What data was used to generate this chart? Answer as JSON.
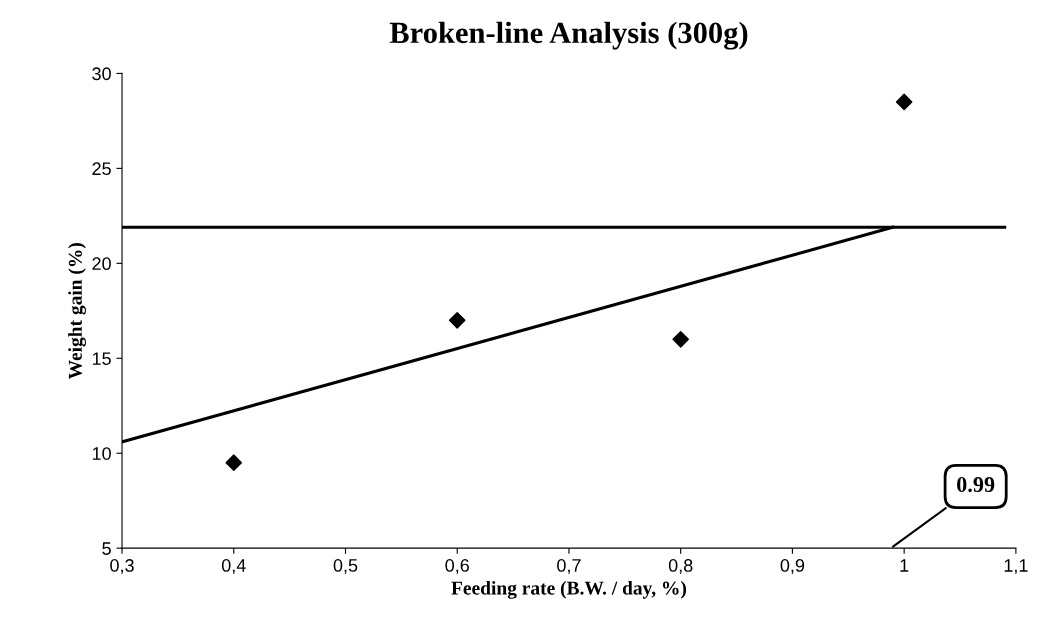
{
  "chart_data": {
    "type": "scatter",
    "title": "Broken-line Analysis (300g)",
    "xlabel": "Feeding rate (B.W. / day, %)",
    "ylabel": "Weight gain (%)",
    "x": [
      0.4,
      0.6,
      0.8,
      1.0
    ],
    "series": [
      {
        "color": "#000000",
        "marker": "diamond",
        "values": [
          9.5,
          17.0,
          16.0,
          28.5
        ]
      },
      {
        "type": "line",
        "color": "#000000",
        "marker": "none",
        "line_style": "solid",
        "x": [
          0.3,
          0.99
        ],
        "values": [
          10.6,
          21.9
        ]
      },
      {
        "type": "line",
        "color": "#000000",
        "marker": "none",
        "line_style": "solid",
        "x": [
          0.3,
          1.09
        ],
        "values": [
          21.9,
          21.9
        ]
      }
    ],
    "annotations": [
      "0.99"
    ],
    "xlim": [
      0.3,
      1.1
    ],
    "ylim": [
      5,
      30
    ],
    "xticks": [
      {
        "value": 0.3,
        "label": "0,3"
      },
      {
        "value": 0.4,
        "label": "0,4"
      },
      {
        "value": 0.5,
        "label": "0,5"
      },
      {
        "value": 0.6,
        "label": "0,6"
      },
      {
        "value": 0.7,
        "label": "0,7"
      },
      {
        "value": 0.8,
        "label": "0,8"
      },
      {
        "value": 0.9,
        "label": "0,9"
      },
      {
        "value": 1,
        "label": "1"
      },
      {
        "value": 1.1,
        "label": "1,1"
      }
    ],
    "yticks": [
      5,
      10,
      15,
      20,
      25,
      30
    ],
    "grid": false,
    "legend": false
  }
}
